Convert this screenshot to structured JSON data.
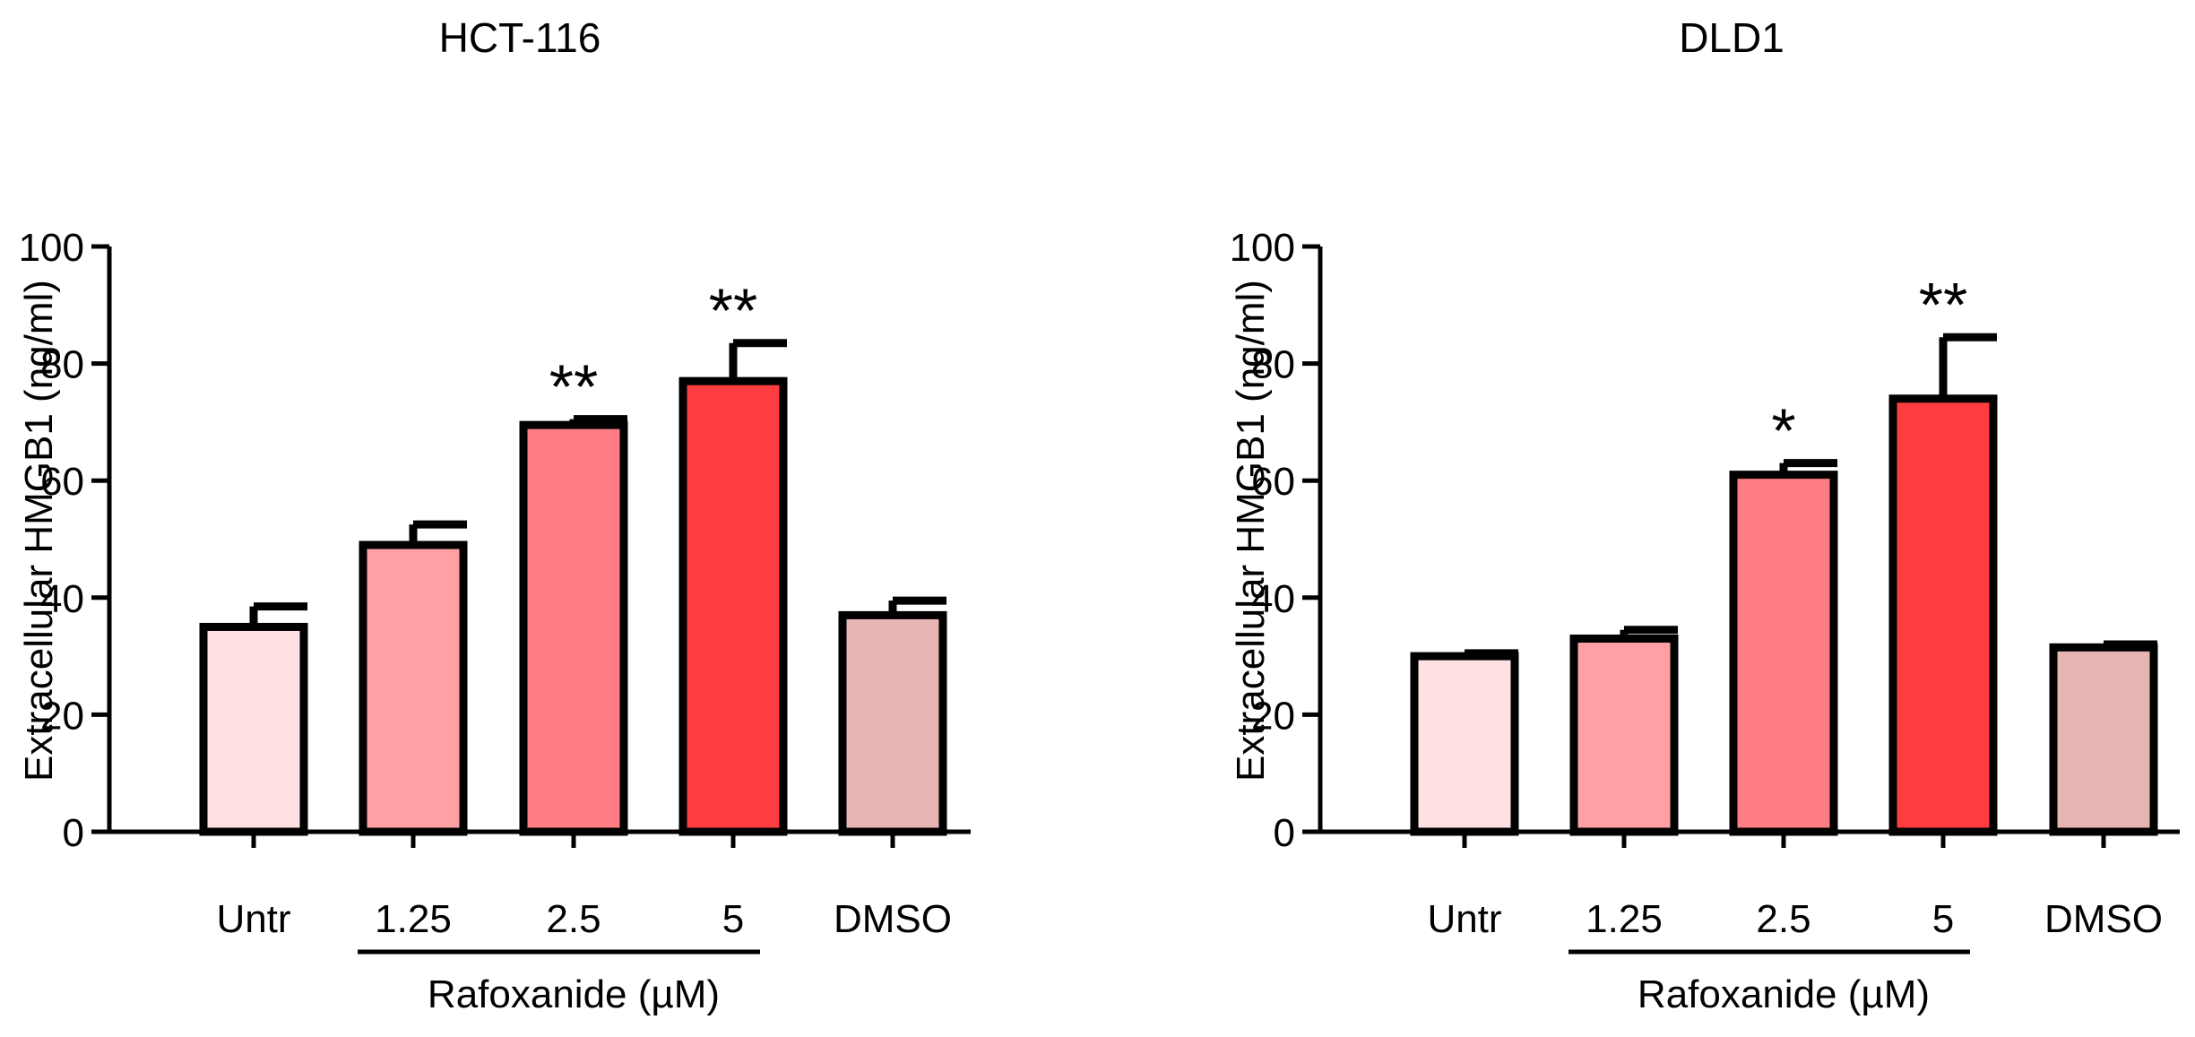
{
  "figure": {
    "treatment_label": "Rafoxanide (µM)"
  },
  "chart_data": [
    {
      "type": "bar",
      "title": "HCT-116",
      "xlabel": "",
      "ylabel": "Extracellular HMGB1 (ng/ml)",
      "ylim": [
        0,
        100
      ],
      "yticks": [
        0,
        20,
        40,
        60,
        80,
        100
      ],
      "categories": [
        "Untr",
        "1.25",
        "2.5",
        "5",
        "DMSO"
      ],
      "values": [
        35,
        49,
        69.5,
        77,
        37
      ],
      "errors": [
        3.5,
        3.5,
        1,
        6.5,
        2.5
      ],
      "significance": [
        "",
        "",
        "**",
        "**",
        ""
      ],
      "colors": [
        "#FFE0E3",
        "#FFA0A4",
        "#FF7E83",
        "#FF3D41",
        "#E5B4B3"
      ],
      "grid": false,
      "group_label": "Rafoxanide (µM)",
      "group_span": [
        "1.25",
        "5"
      ]
    },
    {
      "type": "bar",
      "title": "DLD1",
      "xlabel": "",
      "ylabel": "Extracellular HMGB1 (ng/ml)",
      "ylim": [
        0,
        100
      ],
      "yticks": [
        0,
        20,
        40,
        60,
        80,
        100
      ],
      "categories": [
        "Untr",
        "1.25",
        "2.5",
        "5",
        "DMSO"
      ],
      "values": [
        30,
        33,
        61,
        74,
        31.5
      ],
      "errors": [
        0.5,
        1.5,
        2,
        10.5,
        0.5
      ],
      "significance": [
        "",
        "",
        "*",
        "**",
        ""
      ],
      "colors": [
        "#FFE0E3",
        "#FFA0A4",
        "#FF7E83",
        "#FF3D41",
        "#E5B4B3"
      ],
      "grid": false,
      "group_label": "Rafoxanide (µM)",
      "group_span": [
        "1.25",
        "5"
      ]
    }
  ]
}
